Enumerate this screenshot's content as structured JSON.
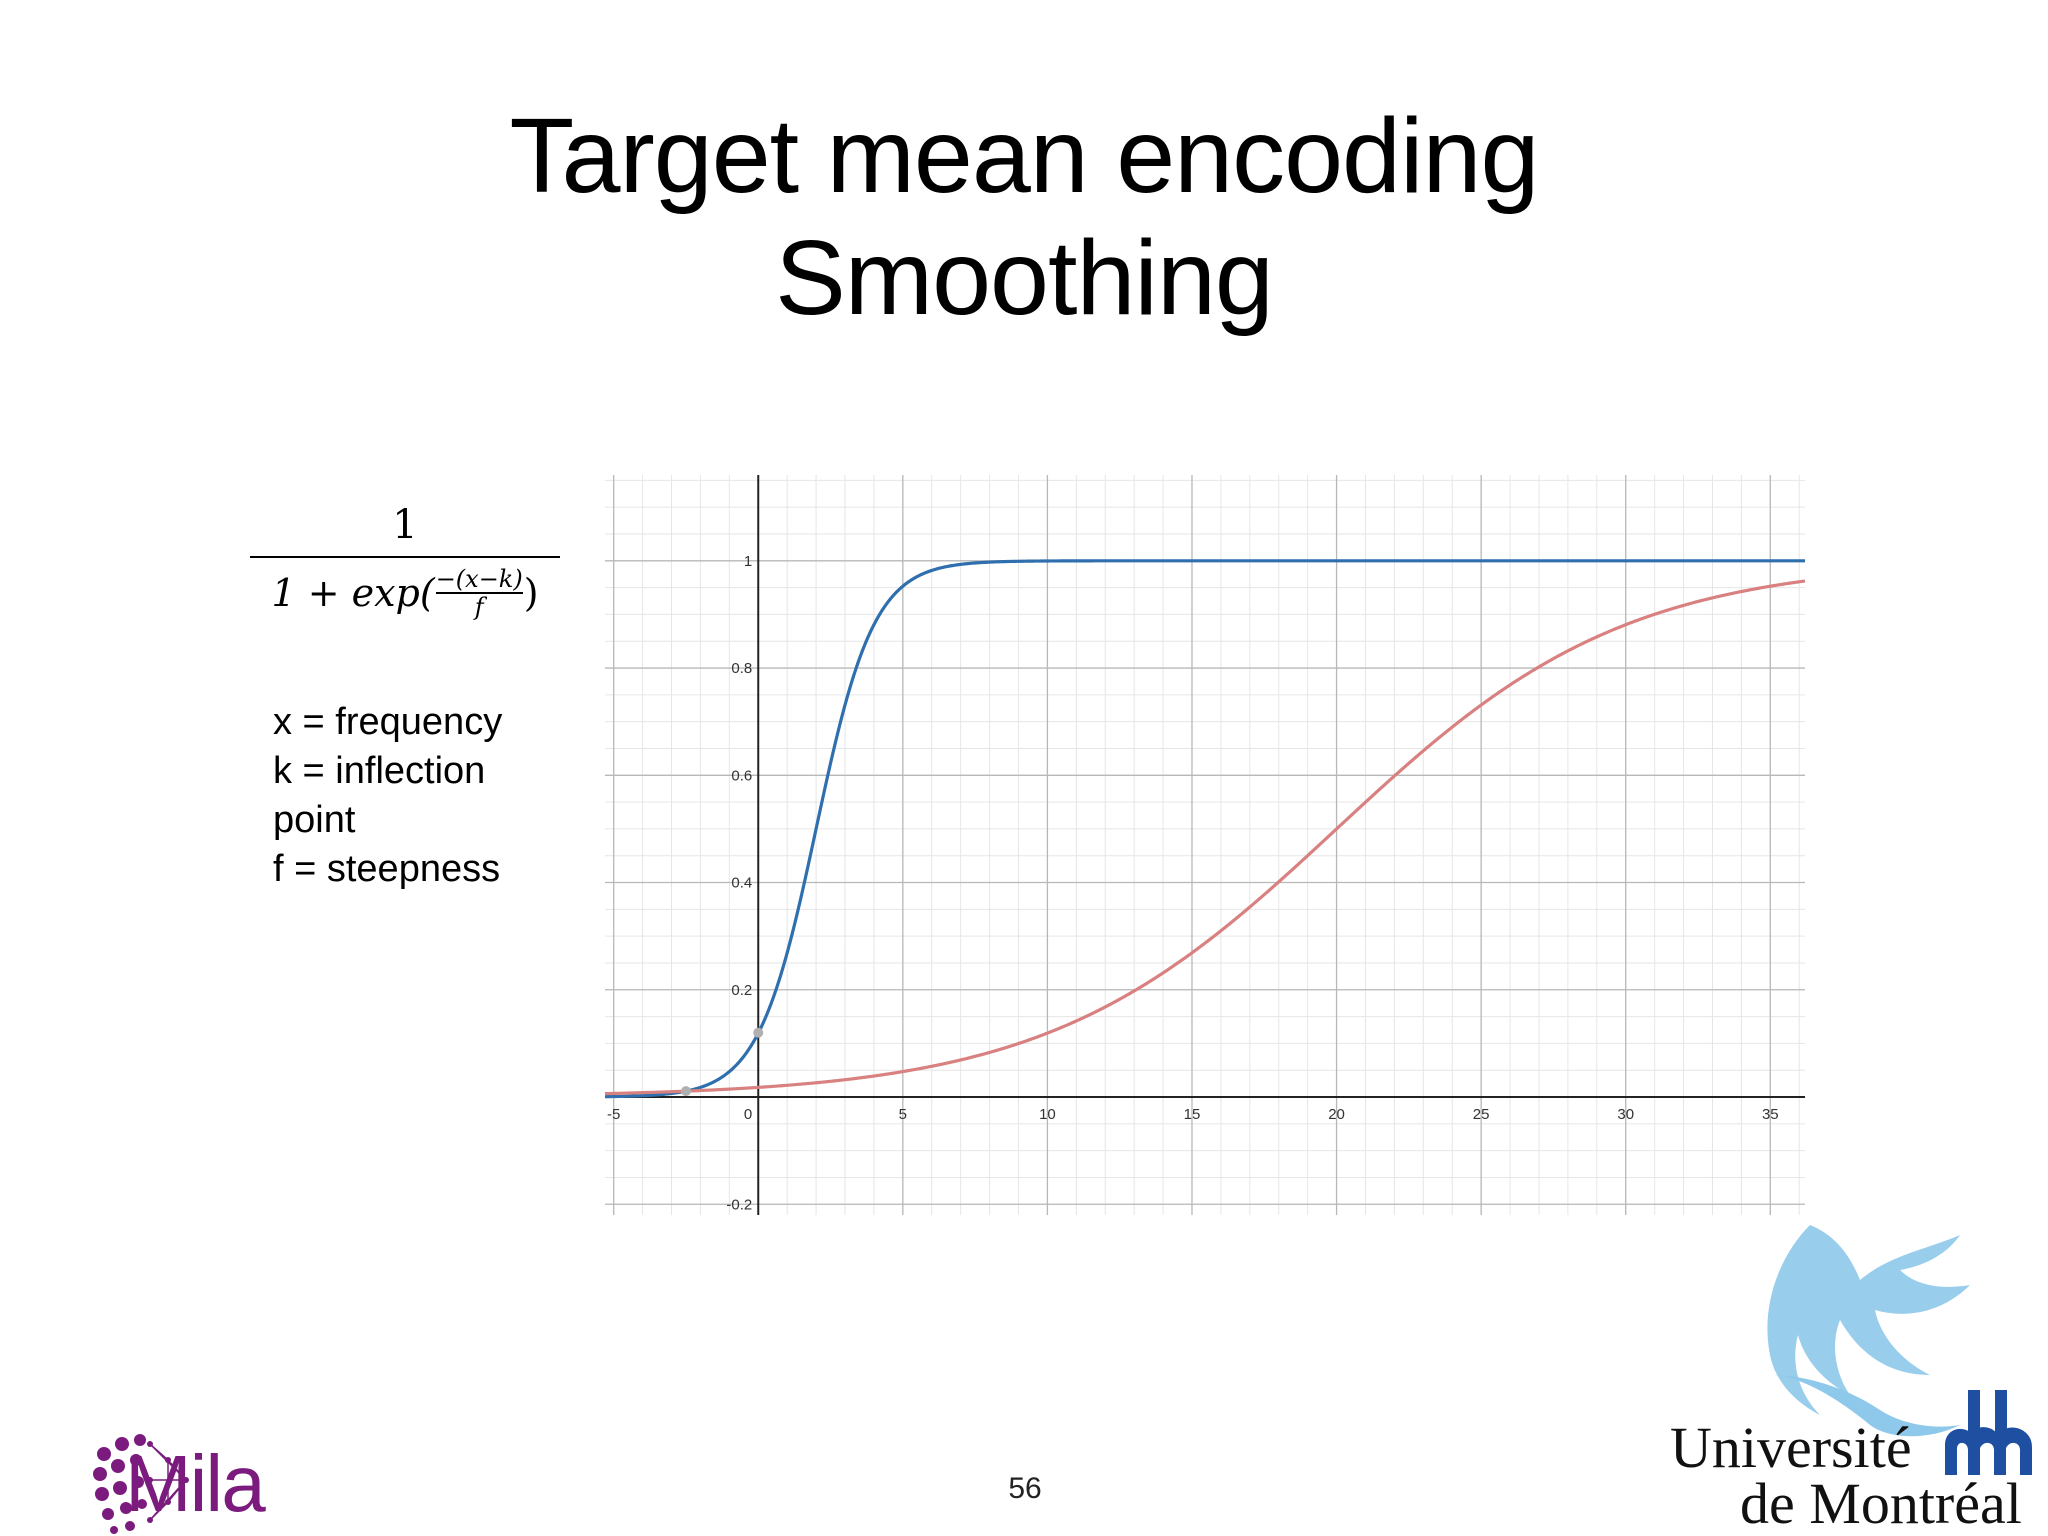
{
  "slide": {
    "title_line1": "Target mean encoding",
    "title_line2": "Smoothing",
    "page_number": "56"
  },
  "formula": {
    "numerator": "1",
    "denominator_prefix": "1 + exp(",
    "inner_numerator": "−(x−k)",
    "inner_denominator": "f",
    "denominator_suffix": ")"
  },
  "legend_text": {
    "line1": "x = frequency",
    "line2": "k = inflection",
    "line3": "point",
    "line4": "f = steepness"
  },
  "logos": {
    "left": "Mila",
    "right_line1": "Université",
    "right_line2": "de Montréal"
  },
  "chart_data": {
    "type": "line",
    "title": "",
    "xlabel": "",
    "ylabel": "",
    "xlim": [
      -5.3,
      36.2
    ],
    "ylim": [
      -0.22,
      1.16
    ],
    "x_ticks": [
      -5,
      5,
      10,
      15,
      20,
      25,
      30,
      35
    ],
    "x_tick_labels": [
      "-5",
      "5",
      "10",
      "15",
      "20",
      "25",
      "30",
      "35"
    ],
    "y_ticks": [
      0.2,
      0.4,
      0.6,
      0.8,
      1,
      -0.2
    ],
    "y_tick_labels": [
      "0.2",
      "0.4",
      "0.6",
      "0.8",
      "1",
      "-0.2"
    ],
    "origin_label": "0",
    "grid": true,
    "series": [
      {
        "color": "#2f6fad",
        "function": "sigmoid",
        "k": 2,
        "f": 1
      },
      {
        "color": "#d98080",
        "function": "sigmoid",
        "k": 20,
        "f": 5
      }
    ],
    "highlight_points": [
      {
        "x": 0,
        "y": 0.12
      },
      {
        "x": -2.5,
        "y": 0.011
      }
    ]
  }
}
